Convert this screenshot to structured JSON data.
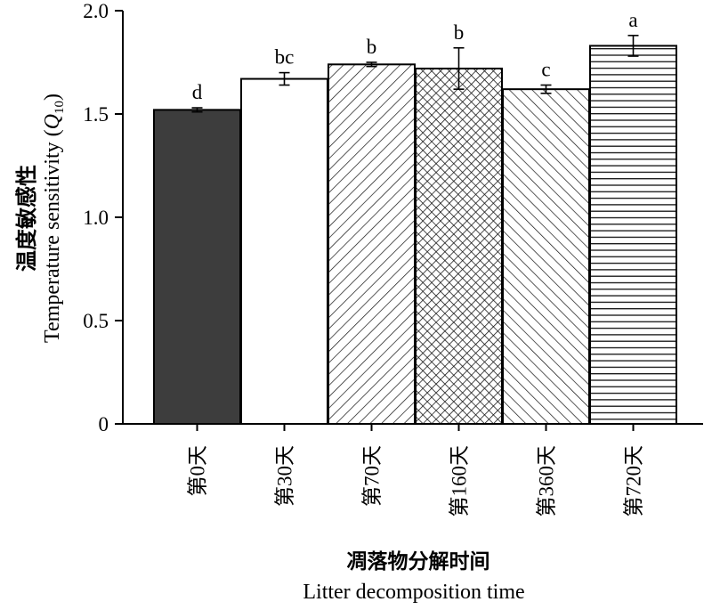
{
  "chart_data": {
    "type": "bar",
    "categories": [
      "第0天",
      "第30天",
      "第70天",
      "第160天",
      "第360天",
      "第720天"
    ],
    "values": [
      1.52,
      1.67,
      1.74,
      1.72,
      1.62,
      1.83
    ],
    "errors": [
      0.01,
      0.03,
      0.01,
      0.1,
      0.02,
      0.05
    ],
    "significance_letters": [
      "d",
      "bc",
      "b",
      "b",
      "c",
      "a"
    ],
    "fills": [
      "solid-dark",
      "white",
      "diagonal-forward",
      "crosshatch",
      "diagonal-back",
      "horizontal"
    ],
    "dark_fill_color": "#3d3d3d",
    "ylim": [
      0,
      2.0
    ],
    "yticks": [
      "0",
      "0.5",
      "1.0",
      "1.5",
      "2.0"
    ],
    "ylabel_cn": "温度敏感性",
    "ylabel_en": "Temperature sensitivity (",
    "ylabel_q": "Q",
    "ylabel_sub": "10",
    "ylabel_close": ")",
    "xlabel_cn": "凋落物分解时间",
    "xlabel_en": "Litter decomposition time"
  }
}
